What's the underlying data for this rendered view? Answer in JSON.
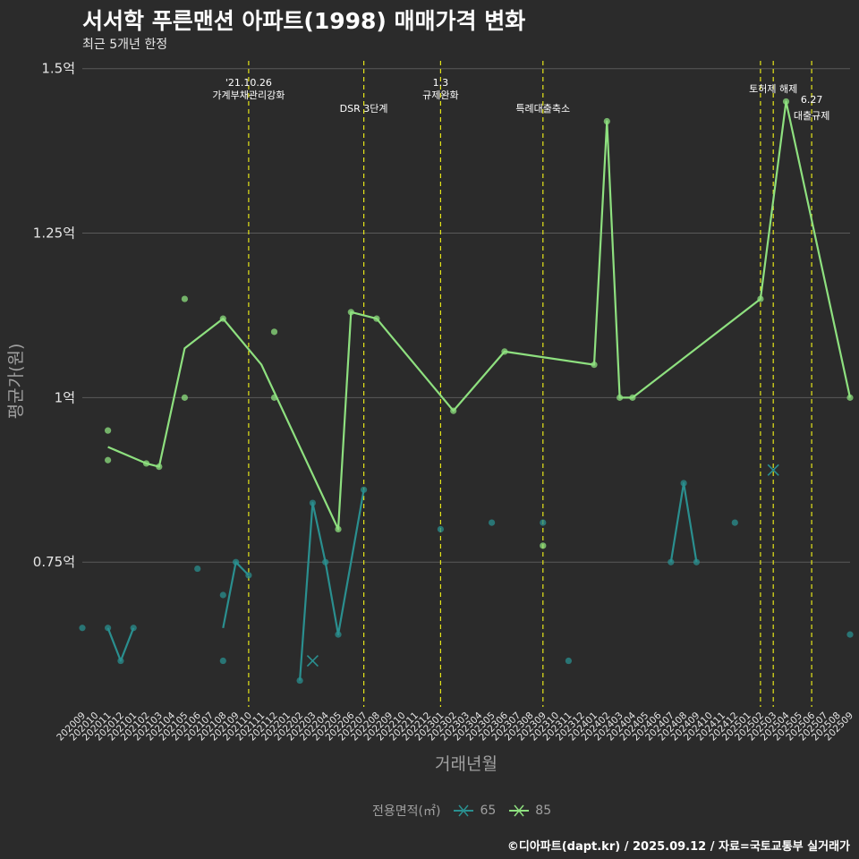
{
  "header": {
    "title": "서서학 푸른맨션 아파트(1998) 매매가격 변화",
    "subtitle": "최근 5개년 한정"
  },
  "caption": "©디아파트(dapt.kr) / 2025.09.12 / 자료=국토교통부 실거래가",
  "colors": {
    "s65": "#2a8f8f",
    "s85": "#8ee07f",
    "vline": "#e6e619",
    "grid": "#5a5a5a",
    "background": "#2b2b2b"
  },
  "chart_data": {
    "type": "line",
    "title": "서서학 푸른맨션 아파트(1998) 매매가격 변화",
    "subtitle": "최근 5개년 한정",
    "xlabel": "거래년월",
    "ylabel": "평균가(원)",
    "ylim": [
      0.53,
      1.52
    ],
    "yticks": [
      {
        "v": 0.75,
        "label": "0.75억"
      },
      {
        "v": 1.0,
        "label": "1억"
      },
      {
        "v": 1.25,
        "label": "1.25억"
      },
      {
        "v": 1.5,
        "label": "1.5억"
      }
    ],
    "categories": [
      "202009",
      "202010",
      "202011",
      "202012",
      "202101",
      "202102",
      "202103",
      "202104",
      "202105",
      "202106",
      "202107",
      "202108",
      "202109",
      "202110",
      "202111",
      "202112",
      "202201",
      "202202",
      "202203",
      "202204",
      "202205",
      "202206",
      "202207",
      "202208",
      "202209",
      "202210",
      "202211",
      "202212",
      "202301",
      "202302",
      "202303",
      "202304",
      "202305",
      "202306",
      "202307",
      "202308",
      "202309",
      "202310",
      "202311",
      "202312",
      "202401",
      "202402",
      "202403",
      "202404",
      "202405",
      "202406",
      "202407",
      "202408",
      "202409",
      "202410",
      "202411",
      "202412",
      "202501",
      "202502",
      "202503",
      "202504",
      "202505",
      "202506",
      "202507",
      "202508",
      "202509"
    ],
    "series": [
      {
        "name": "65",
        "color": "#2a8f8f",
        "line": [
          [
            [
              "202011",
              0.65
            ],
            [
              "202012",
              0.6
            ],
            [
              "202101",
              0.65
            ]
          ],
          [
            [
              "202108",
              0.65
            ],
            [
              "202109",
              0.75
            ],
            [
              "202110",
              0.73
            ]
          ],
          [
            [
              "202202",
              0.57
            ],
            [
              "202203",
              0.84
            ],
            [
              "202204",
              0.75
            ],
            [
              "202205",
              0.64
            ],
            [
              "202207",
              0.86
            ]
          ],
          [
            [
              "202407",
              0.75
            ],
            [
              "202408",
              0.87
            ],
            [
              "202409",
              0.75
            ]
          ]
        ],
        "points": [
          [
            "202009",
            0.65
          ],
          [
            "202011",
            0.65
          ],
          [
            "202012",
            0.6
          ],
          [
            "202101",
            0.65
          ],
          [
            "202106",
            0.74
          ],
          [
            "202108",
            0.7
          ],
          [
            "202108",
            0.6
          ],
          [
            "202109",
            0.75
          ],
          [
            "202110",
            0.73
          ],
          [
            "202202",
            0.57
          ],
          [
            "202203",
            0.84
          ],
          [
            "202204",
            0.75
          ],
          [
            "202205",
            0.64
          ],
          [
            "202207",
            0.86
          ],
          [
            "202301",
            0.8
          ],
          [
            "202305",
            0.81
          ],
          [
            "202309",
            0.81
          ],
          [
            "202311",
            0.6
          ],
          [
            "202407",
            0.75
          ],
          [
            "202408",
            0.87
          ],
          [
            "202409",
            0.75
          ],
          [
            "202412",
            0.81
          ],
          [
            "202509",
            0.64
          ]
        ],
        "crosses": [
          [
            "202203",
            0.6
          ],
          [
            "202503",
            0.89
          ]
        ]
      },
      {
        "name": "85",
        "color": "#8ee07f",
        "line": [
          [
            [
              "202011",
              0.925
            ],
            [
              "202102",
              0.9
            ],
            [
              "202103",
              0.895
            ],
            [
              "202105",
              1.075
            ],
            [
              "202108",
              1.12
            ],
            [
              "202111",
              1.05
            ],
            [
              "202205",
              0.8
            ],
            [
              "202206",
              1.13
            ],
            [
              "202208",
              1.12
            ],
            [
              "202302",
              0.98
            ],
            [
              "202306",
              1.07
            ],
            [
              "202401",
              1.05
            ],
            [
              "202402",
              1.42
            ],
            [
              "202403",
              1.0
            ],
            [
              "202404",
              1.0
            ],
            [
              "202502",
              1.15
            ],
            [
              "202504",
              1.45
            ],
            [
              "202509",
              1.0
            ]
          ]
        ],
        "points": [
          [
            "202011",
            0.95
          ],
          [
            "202011",
            0.905
          ],
          [
            "202102",
            0.9
          ],
          [
            "202103",
            0.895
          ],
          [
            "202105",
            1.15
          ],
          [
            "202105",
            1.0
          ],
          [
            "202108",
            1.12
          ],
          [
            "202112",
            1.1
          ],
          [
            "202112",
            1.0
          ],
          [
            "202205",
            0.8
          ],
          [
            "202206",
            1.13
          ],
          [
            "202208",
            1.12
          ],
          [
            "202302",
            0.98
          ],
          [
            "202306",
            1.07
          ],
          [
            "202309",
            0.775
          ],
          [
            "202401",
            1.05
          ],
          [
            "202402",
            1.42
          ],
          [
            "202403",
            1.0
          ],
          [
            "202404",
            1.0
          ],
          [
            "202502",
            1.15
          ],
          [
            "202504",
            1.45
          ],
          [
            "202509",
            1.0
          ]
        ],
        "crosses": []
      }
    ],
    "events": [
      {
        "x": "202110",
        "label_top": "'21.10.26",
        "label_bottom": "가계부채관리강화"
      },
      {
        "x": "202207",
        "label_top": "",
        "label_bottom": "DSR 3단계"
      },
      {
        "x": "202301",
        "label_top": "1.3",
        "label_bottom": "규제완화"
      },
      {
        "x": "202309",
        "label_top": "",
        "label_bottom": "특례대출축소"
      },
      {
        "x": "202502",
        "label_top": "",
        "label_bottom": ""
      },
      {
        "x": "202503",
        "label_top": "토허제 해제",
        "label_bottom": ""
      },
      {
        "x": "202506",
        "label_top": "6.27",
        "label_bottom": "대출규제"
      }
    ],
    "legend": {
      "title": "전용면적(㎡)",
      "position": "bottom"
    }
  }
}
